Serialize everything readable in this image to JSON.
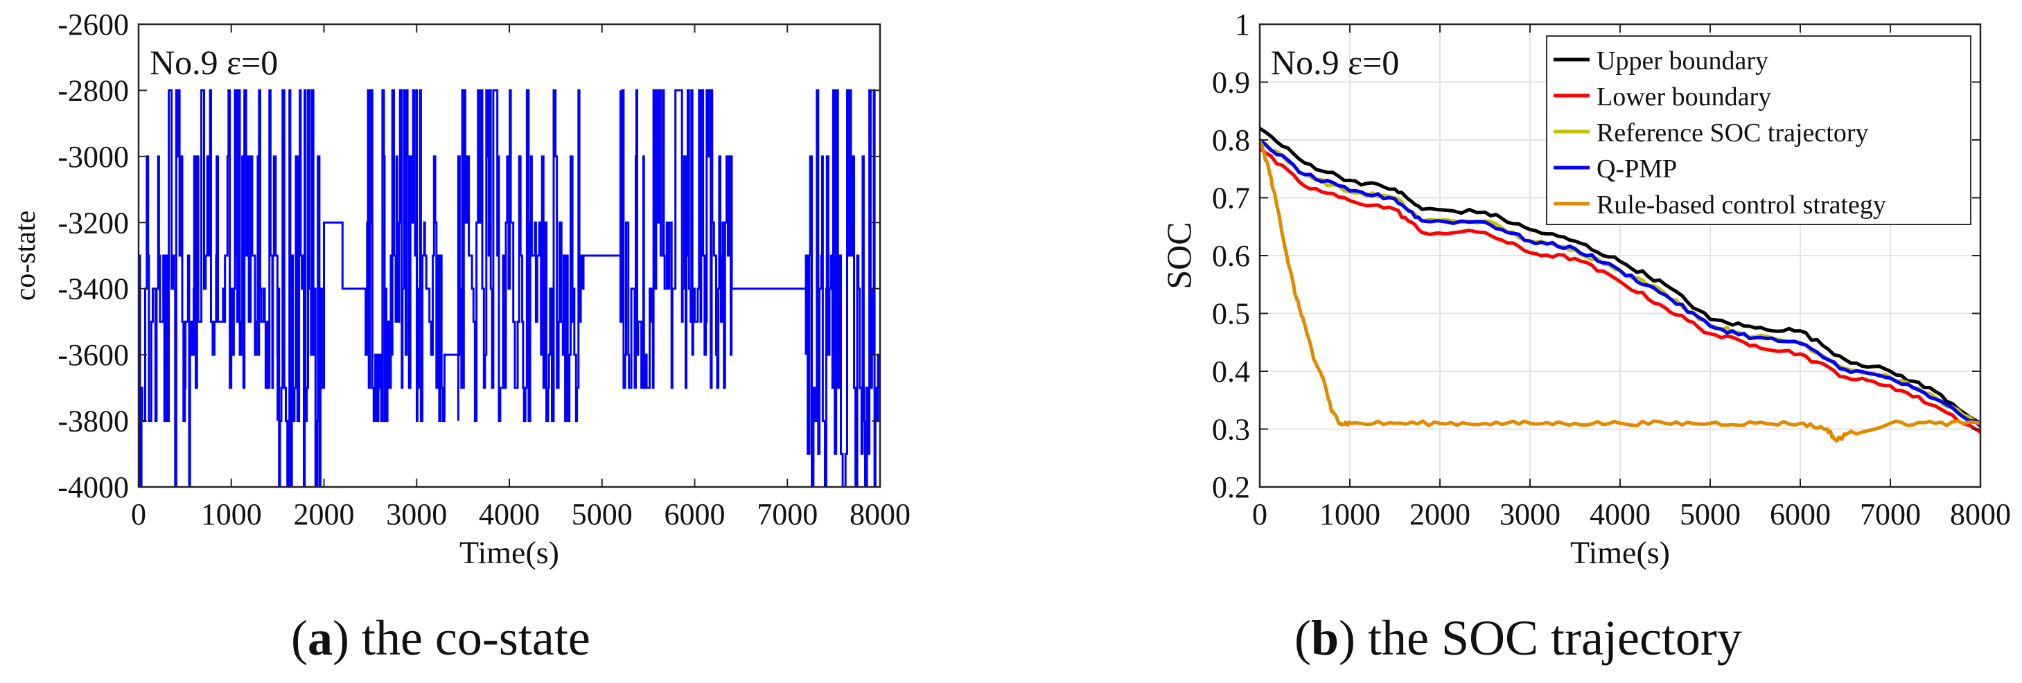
{
  "chart_data": [
    {
      "id": "a",
      "type": "line",
      "annotation": "No.9 ε=0",
      "xlabel": "Time(s)",
      "ylabel": "co-state",
      "xlim": [
        0,
        8000
      ],
      "ylim": [
        -4000,
        -2600
      ],
      "xticks": [
        "0",
        "1000",
        "2000",
        "3000",
        "4000",
        "5000",
        "6000",
        "7000",
        "8000"
      ],
      "yticks": [
        "-4000",
        "-3800",
        "-3600",
        "-3400",
        "-3200",
        "-3000",
        "-2800",
        "-2600"
      ],
      "grid": false,
      "series": [
        {
          "name": "co-state",
          "color": "#0000ff",
          "segments": [
            {
              "t0": 0,
              "t1": 600,
              "kind": "noisy",
              "levels": [
                -2800,
                -3000,
                -3300,
                -3400,
                -3500,
                -3600,
                -3700,
                -3800,
                -4000
              ]
            },
            {
              "t0": 600,
              "t1": 1500,
              "kind": "noisy",
              "levels": [
                -2800,
                -3000,
                -3300,
                -3400,
                -3500,
                -3600,
                -3700
              ]
            },
            {
              "t0": 1500,
              "t1": 2000,
              "kind": "noisy",
              "levels": [
                -2800,
                -3000,
                -3300,
                -3400,
                -3600,
                -3700,
                -3800,
                -4000
              ]
            },
            {
              "t0": 2000,
              "t1": 2200,
              "kind": "flat",
              "value": -3200
            },
            {
              "t0": 2200,
              "t1": 2450,
              "kind": "flat",
              "value": -3400
            },
            {
              "t0": 2450,
              "t1": 3300,
              "kind": "noisy",
              "levels": [
                -2800,
                -3000,
                -3200,
                -3300,
                -3400,
                -3500,
                -3600,
                -3700,
                -3800
              ]
            },
            {
              "t0": 3300,
              "t1": 3450,
              "kind": "flat",
              "value": -3600
            },
            {
              "t0": 3450,
              "t1": 4800,
              "kind": "noisy",
              "levels": [
                -2800,
                -3000,
                -3200,
                -3300,
                -3400,
                -3500,
                -3600,
                -3700,
                -3800
              ]
            },
            {
              "t0": 4800,
              "t1": 5200,
              "kind": "flat",
              "value": -3300
            },
            {
              "t0": 5200,
              "t1": 6400,
              "kind": "noisy",
              "levels": [
                -2800,
                -3000,
                -3200,
                -3300,
                -3400,
                -3500,
                -3600,
                -3700
              ]
            },
            {
              "t0": 6400,
              "t1": 7200,
              "kind": "flat",
              "value": -3400
            },
            {
              "t0": 7200,
              "t1": 8000,
              "kind": "noisy",
              "levels": [
                -2800,
                -3000,
                -3300,
                -3400,
                -3600,
                -3700,
                -3800,
                -3900,
                -4000
              ]
            }
          ]
        }
      ]
    },
    {
      "id": "b",
      "type": "line",
      "annotation": "No.9 ε=0",
      "xlabel": "Time(s)",
      "ylabel": "SOC",
      "xlim": [
        0,
        8000
      ],
      "ylim": [
        0.2,
        1
      ],
      "xticks": [
        "0",
        "1000",
        "2000",
        "3000",
        "4000",
        "5000",
        "6000",
        "7000",
        "8000"
      ],
      "yticks": [
        "0.2",
        "0.3",
        "0.4",
        "0.5",
        "0.6",
        "0.7",
        "0.8",
        "0.9",
        "1"
      ],
      "grid": true,
      "legend_position": "top-right",
      "series": [
        {
          "name": "Upper boundary",
          "color": "#000000",
          "x": [
            0,
            500,
            1000,
            1500,
            1800,
            2500,
            3000,
            3500,
            4000,
            4500,
            5000,
            5500,
            6000,
            6500,
            7000,
            7500,
            8000
          ],
          "y": [
            0.82,
            0.76,
            0.73,
            0.715,
            0.68,
            0.675,
            0.645,
            0.625,
            0.59,
            0.55,
            0.49,
            0.475,
            0.47,
            0.42,
            0.4,
            0.365,
            0.31
          ]
        },
        {
          "name": "Lower boundary",
          "color": "#ff0000",
          "x": [
            0,
            500,
            1000,
            1500,
            1800,
            2500,
            3000,
            3500,
            4000,
            4500,
            5000,
            5500,
            6000,
            6500,
            7000,
            7500,
            8000
          ],
          "y": [
            0.785,
            0.72,
            0.695,
            0.68,
            0.64,
            0.64,
            0.605,
            0.595,
            0.555,
            0.51,
            0.465,
            0.445,
            0.43,
            0.39,
            0.375,
            0.34,
            0.295
          ]
        },
        {
          "name": "Reference SOC trajectory",
          "color": "#bfc400",
          "x": [
            0,
            500,
            1000,
            1500,
            1800,
            2500,
            3000,
            3500,
            4000,
            4500,
            5000,
            5500,
            6000,
            6500,
            7000,
            7500,
            8000
          ],
          "y": [
            0.8,
            0.74,
            0.71,
            0.7,
            0.66,
            0.66,
            0.625,
            0.61,
            0.575,
            0.535,
            0.48,
            0.46,
            0.45,
            0.405,
            0.39,
            0.355,
            0.305
          ]
        },
        {
          "name": "Q-PMP",
          "color": "#0000ff",
          "x": [
            0,
            500,
            1000,
            1500,
            1800,
            2500,
            3000,
            3500,
            4000,
            4500,
            5000,
            5500,
            6000,
            6500,
            7000,
            7500,
            8000
          ],
          "y": [
            0.8,
            0.74,
            0.712,
            0.698,
            0.66,
            0.658,
            0.625,
            0.612,
            0.574,
            0.532,
            0.478,
            0.458,
            0.448,
            0.403,
            0.388,
            0.352,
            0.305
          ]
        },
        {
          "name": "Rule-based control strategy",
          "color": "#e08a00",
          "x": [
            0,
            100,
            200,
            300,
            400,
            500,
            600,
            700,
            800,
            900,
            1000,
            1500,
            2000,
            2500,
            3000,
            3500,
            4000,
            4500,
            5000,
            5500,
            6000,
            6300,
            6400,
            6500,
            7000,
            7500,
            8000
          ],
          "y": [
            0.8,
            0.75,
            0.68,
            0.6,
            0.53,
            0.48,
            0.42,
            0.39,
            0.33,
            0.31,
            0.31,
            0.31,
            0.31,
            0.31,
            0.31,
            0.31,
            0.31,
            0.31,
            0.31,
            0.31,
            0.31,
            0.3,
            0.28,
            0.29,
            0.31,
            0.31,
            0.31
          ]
        }
      ]
    }
  ],
  "captions": {
    "a": {
      "letter": "a",
      "text": " the co-state"
    },
    "b": {
      "letter": "b",
      "text": " the SOC trajectory"
    }
  }
}
